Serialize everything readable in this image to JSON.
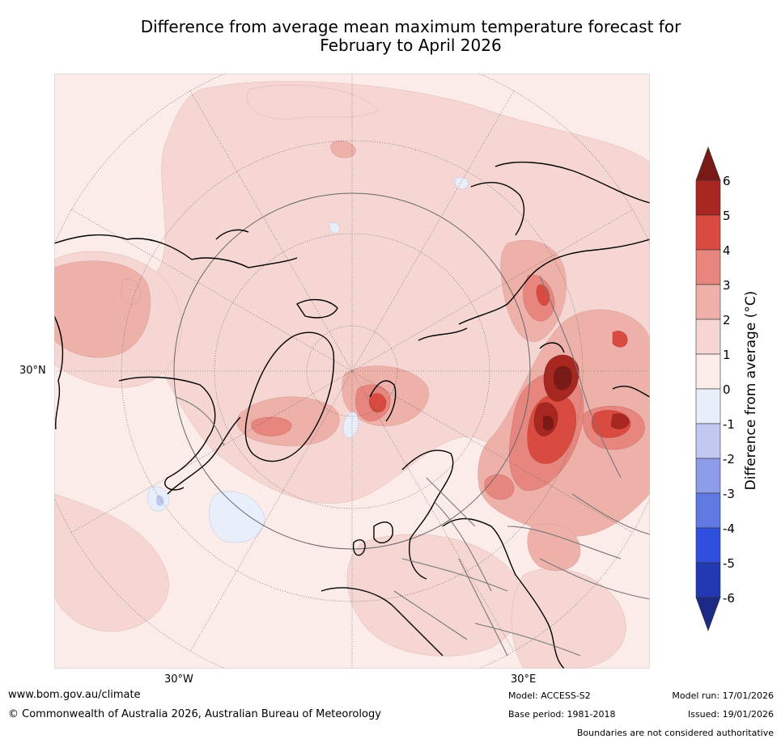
{
  "title_line1": "Difference from average mean maximum temperature forecast for",
  "title_line2": "February to April 2026",
  "map": {
    "projection": "north-polar-stereographic",
    "lat_labels": [
      "30°N"
    ],
    "lon_labels": [
      "30°W",
      "30°E"
    ],
    "features": [
      "coastlines",
      "country-boundaries",
      "lat-lon-graticule",
      "temperature-anomaly-contours"
    ]
  },
  "colorbar": {
    "label": "Difference from average (°C)",
    "ticks": [
      "6",
      "5",
      "4",
      "3",
      "2",
      "1",
      "0",
      "-1",
      "-2",
      "-3",
      "-4",
      "-5",
      "-6"
    ],
    "bins": [
      {
        "range": "above 6",
        "color": "#7a1a16"
      },
      {
        "range": "5 to 6",
        "color": "#a92721"
      },
      {
        "range": "4 to 5",
        "color": "#d94a40"
      },
      {
        "range": "3 to 4",
        "color": "#e7867e"
      },
      {
        "range": "2 to 3",
        "color": "#eeb1aa"
      },
      {
        "range": "1 to 2",
        "color": "#f5d6d2"
      },
      {
        "range": "0 to 1",
        "color": "#fbecea"
      },
      {
        "range": "-1 to 0",
        "color": "#e9eefb"
      },
      {
        "range": "-2 to -1",
        "color": "#c1c9f2"
      },
      {
        "range": "-3 to -2",
        "color": "#8d9ce9"
      },
      {
        "range": "-4 to -3",
        "color": "#5f78e2"
      },
      {
        "range": "-5 to -4",
        "color": "#2f4fdf"
      },
      {
        "range": "-6 to -5",
        "color": "#2238b0"
      },
      {
        "range": "below -6",
        "color": "#1c2a86"
      }
    ]
  },
  "footer": {
    "website": "www.bom.gov.au/climate",
    "copyright": "© Commonwealth of Australia 2026, Australian Bureau of Meteorology",
    "model": "Model: ACCESS-S2",
    "base_period": "Base period: 1981-2018",
    "model_run": "Model run: 17/01/2026",
    "issued": "Issued: 19/01/2026",
    "boundaries": "Boundaries are not considered authoritative"
  }
}
